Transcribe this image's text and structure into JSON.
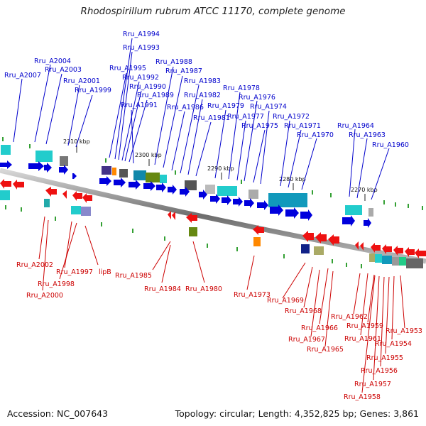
{
  "title": "Rhodospirillum rubrum ATCC 11170, complete genome",
  "footer": {
    "accession": "Accession: NC_007643",
    "summary": "Topology: circular; Length: 4,352,825 bp; Genes: 3,861"
  },
  "colors": {
    "forward": "#0000dd",
    "reverse": "#ee1111",
    "top_label": "#0000cc",
    "bottom_label": "#cc0000",
    "backbone": "#777777",
    "tick": "#008800"
  },
  "scale_labels": [
    "2310 kbp",
    "2300 kbp",
    "2290 kbp",
    "2280 kbp",
    "2270 kbp"
  ],
  "top_genes": [
    "Rru_A2007",
    "Rru_A2004",
    "Rru_A2003",
    "Rru_A2001",
    "Rru_A1999",
    "Rru_A1995",
    "Rru_A1994",
    "Rru_A1993",
    "Rru_A1992",
    "Rru_A1990",
    "Rru_A1989",
    "Rru_A1991",
    "Rru_A1988",
    "Rru_A1987",
    "Rru_A1986",
    "Rru_A1983",
    "Rru_A1982",
    "Rru_A1981",
    "Rru_A1979",
    "Rru_A1978",
    "Rru_A1977",
    "Rru_A1976",
    "Rru_A1975",
    "Rru_A1974",
    "Rru_A1972",
    "Rru_A1971",
    "Rru_A1970",
    "Rru_A1964",
    "Rru_A1963",
    "Rru_A1960"
  ],
  "bottom_genes": [
    "Rru_A2002",
    "Rru_A1997",
    "lipB",
    "Rru_A1998",
    "Rru_A2000",
    "Rru_A1985",
    "Rru_A1984",
    "Rru_A1980",
    "Rru_A1973",
    "Rru_A1969",
    "Rru_A1968",
    "Rru_A1966",
    "Rru_A1967",
    "Rru_A1965",
    "Rru_A1962",
    "Rru_A1961",
    "Rru_A1959",
    "Rru_A1953",
    "Rru_A1954",
    "Rru_A1955",
    "Rru_A1956",
    "Rru_A1957",
    "Rru_A1958"
  ]
}
